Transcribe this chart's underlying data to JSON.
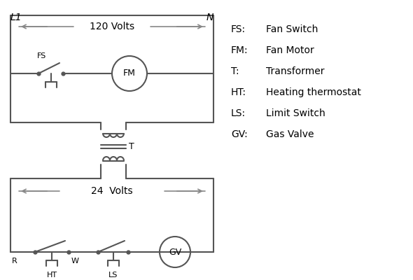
{
  "bg_color": "#ffffff",
  "line_color": "#555555",
  "text_color": "#000000",
  "legend": {
    "FS": "Fan Switch",
    "FM": "Fan Motor",
    "T": "Transformer",
    "HT": "Heating thermostat",
    "LS": "Limit Switch",
    "GV": "Gas Valve"
  },
  "L1_label": "L1",
  "N_label": "N",
  "volts120_label": "120 Volts",
  "volts24_label": "24  Volts",
  "T_label": "T",
  "R_label": "R",
  "W_label": "W",
  "HT_label": "HT",
  "LS_label": "LS"
}
